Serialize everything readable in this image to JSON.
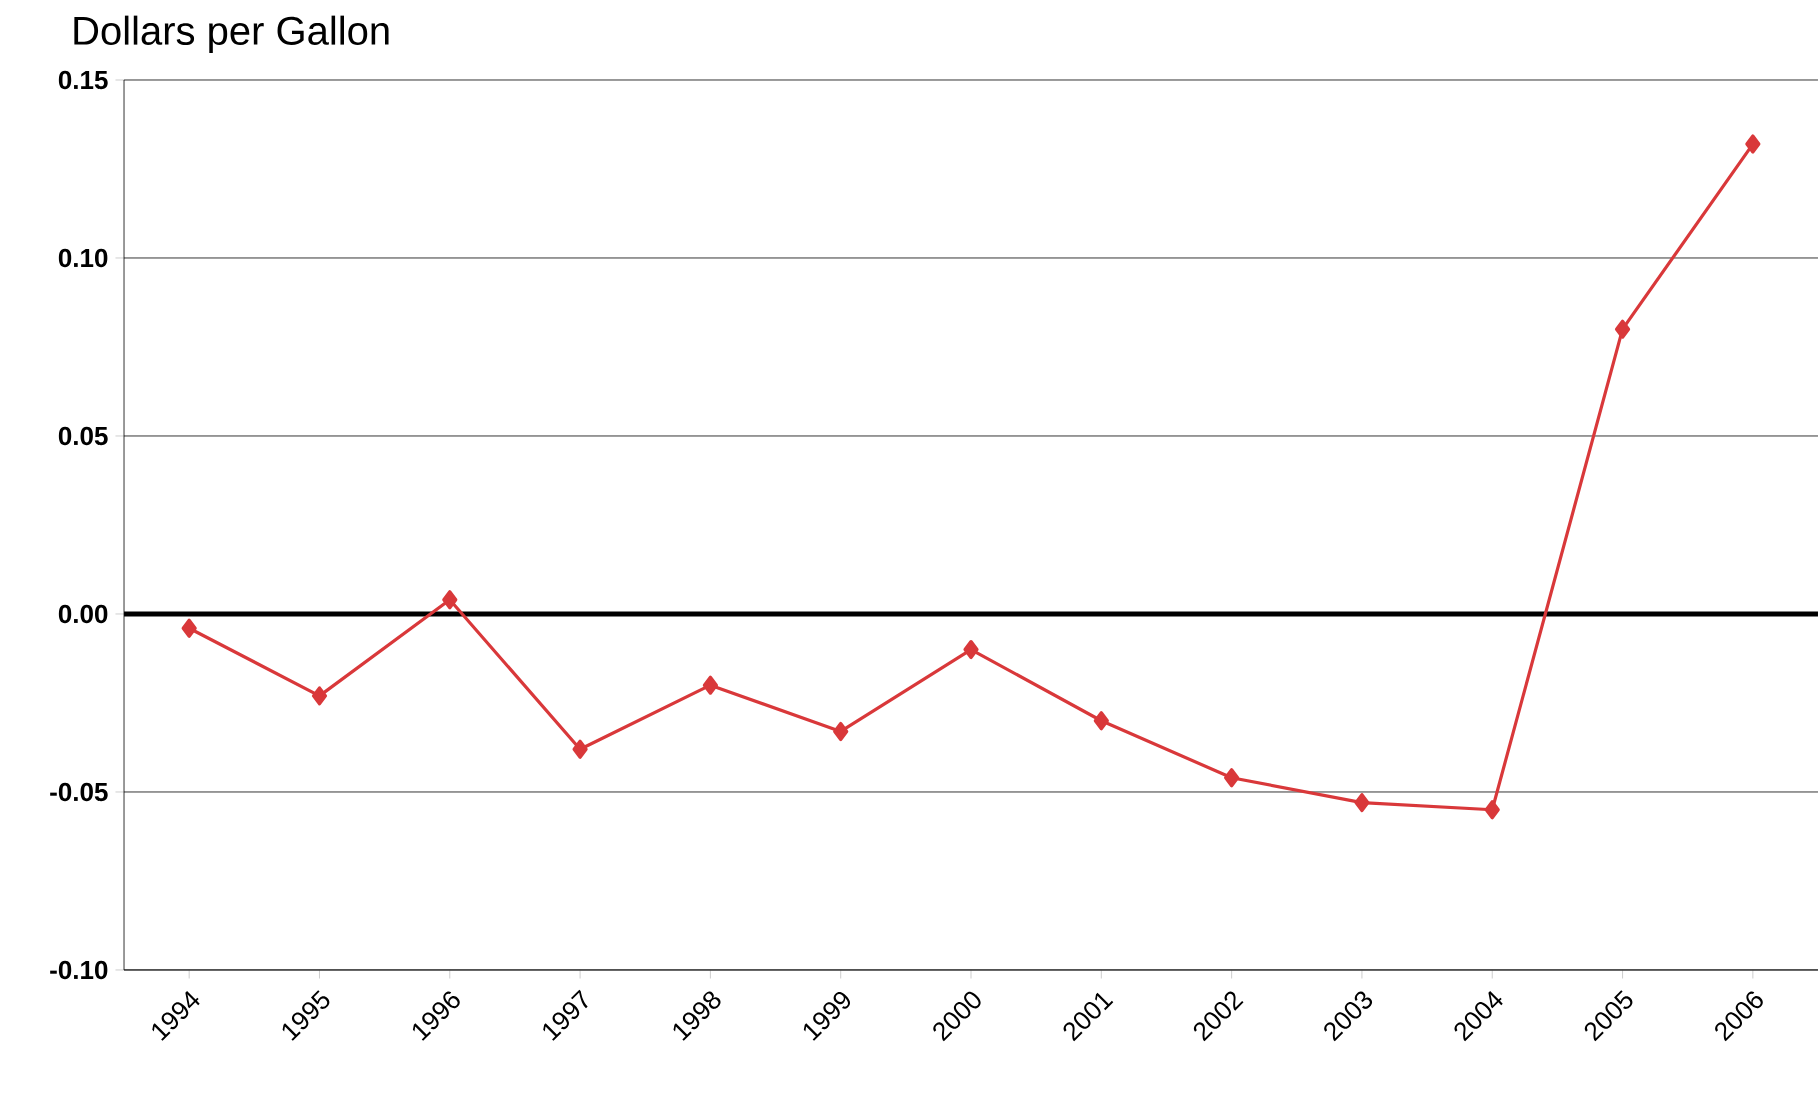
{
  "chart_data": {
    "type": "line",
    "ylabel": "Dollars per Gallon",
    "categories": [
      "1994",
      "1995",
      "1996",
      "1997",
      "1998",
      "1999",
      "2000",
      "2001",
      "2002",
      "2003",
      "2004",
      "2005",
      "2006"
    ],
    "series": [
      {
        "color": "#d9383a",
        "values": [
          -0.004,
          -0.023,
          0.004,
          -0.038,
          -0.02,
          -0.033,
          -0.01,
          -0.03,
          -0.046,
          -0.053,
          -0.055,
          0.08,
          0.132
        ]
      }
    ],
    "ylim": [
      -0.1,
      0.15
    ],
    "yticks": [
      {
        "value": -0.1,
        "label": "-0.10"
      },
      {
        "value": -0.05,
        "label": "-0.05"
      },
      {
        "value": 0,
        "label": "0.00"
      },
      {
        "value": 0.05,
        "label": "0.05"
      },
      {
        "value": 0.1,
        "label": "0.10"
      },
      {
        "value": 0.15,
        "label": "0.15"
      }
    ],
    "grid": "y",
    "marker": "diamond",
    "line_style": "solid",
    "ref_lines": [
      {
        "axis": "y",
        "value": 0,
        "color": "#000000"
      }
    ]
  }
}
